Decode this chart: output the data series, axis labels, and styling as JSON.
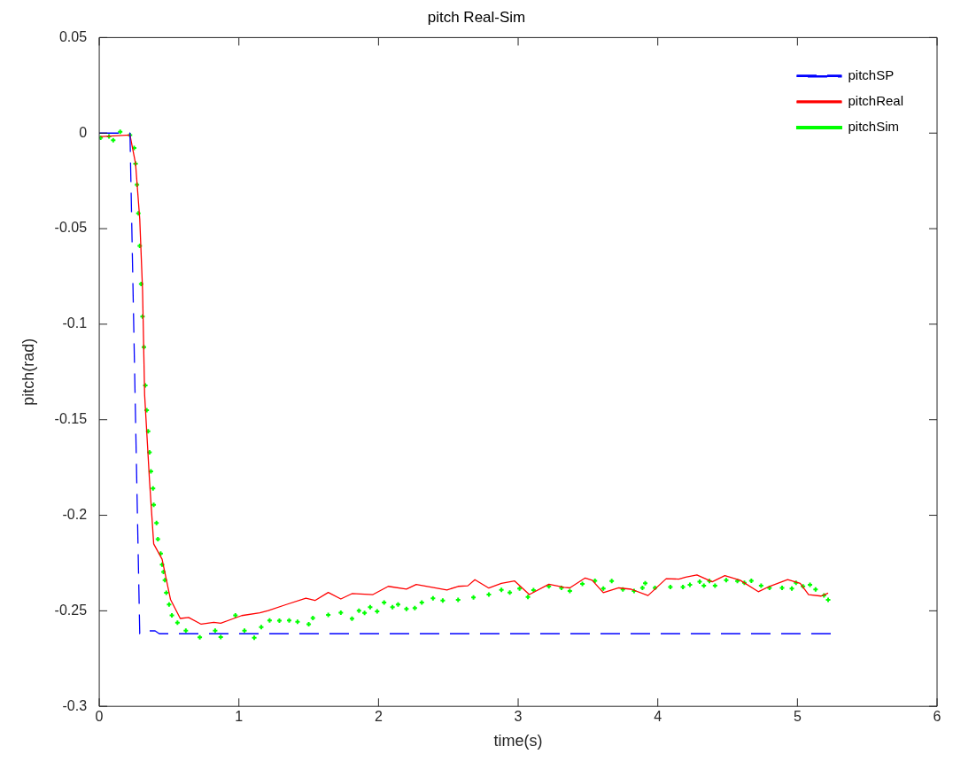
{
  "chart_data": {
    "type": "line",
    "title": "pitch Real-Sim",
    "xlabel": "time(s)",
    "ylabel": "pitch(rad)",
    "xlim": [
      0,
      6
    ],
    "ylim": [
      -0.3,
      0.05
    ],
    "xticks": [
      0,
      1,
      2,
      3,
      4,
      5,
      6
    ],
    "yticks": [
      -0.3,
      -0.25,
      -0.2,
      -0.15,
      -0.1,
      -0.05,
      0,
      0.05
    ],
    "legend": "top right",
    "series": [
      {
        "name": "pitchSP",
        "color": "#0000ff",
        "type": "line",
        "line_style": "dashed",
        "marker": "none",
        "x": [
          0,
          0.22,
          0.29,
          0.33,
          0.36,
          0.4,
          0.43,
          5.24
        ],
        "values": [
          0,
          0,
          -0.262,
          -0.262,
          -0.2605,
          -0.2605,
          -0.262,
          -0.262
        ]
      },
      {
        "name": "pitchReal",
        "color": "#ff0000",
        "type": "line",
        "line_style": "solid",
        "marker": "none",
        "x": [
          0.01,
          0.22,
          0.26,
          0.29,
          0.31,
          0.325,
          0.36,
          0.39,
          0.45,
          0.51,
          0.58,
          0.64,
          0.73,
          0.82,
          0.87,
          1.02,
          1.15,
          1.21,
          1.34,
          1.48,
          1.545,
          1.64,
          1.73,
          1.81,
          1.96,
          2.07,
          2.2,
          2.27,
          2.49,
          2.57,
          2.64,
          2.69,
          2.79,
          2.88,
          2.975,
          3.08,
          3.22,
          3.33,
          3.37,
          3.48,
          3.53,
          3.61,
          3.72,
          3.81,
          3.93,
          4.06,
          4.15,
          4.2,
          4.28,
          4.39,
          4.48,
          4.59,
          4.72,
          4.8,
          4.93,
          5.02,
          5.08,
          5.17,
          5.22
        ],
        "values": [
          -0.0018,
          -0.001,
          -0.016,
          -0.045,
          -0.082,
          -0.137,
          -0.182,
          -0.215,
          -0.223,
          -0.244,
          -0.254,
          -0.2535,
          -0.257,
          -0.256,
          -0.2565,
          -0.2525,
          -0.251,
          -0.2499,
          -0.2467,
          -0.2434,
          -0.2446,
          -0.2404,
          -0.2438,
          -0.241,
          -0.2415,
          -0.2372,
          -0.2386,
          -0.2362,
          -0.2391,
          -0.2372,
          -0.2369,
          -0.2337,
          -0.2381,
          -0.2356,
          -0.2344,
          -0.2415,
          -0.2361,
          -0.2377,
          -0.238,
          -0.2328,
          -0.234,
          -0.2405,
          -0.238,
          -0.2387,
          -0.242,
          -0.2332,
          -0.2334,
          -0.2324,
          -0.2312,
          -0.2348,
          -0.2316,
          -0.234,
          -0.24,
          -0.2372,
          -0.2337,
          -0.2356,
          -0.2415,
          -0.2423,
          -0.2407
        ]
      },
      {
        "name": "pitchSim",
        "color": "#00ff00",
        "type": "scatter",
        "marker": "cross",
        "x": [
          0.01,
          0.07,
          0.1,
          0.15,
          0.22,
          0.25,
          0.26,
          0.27,
          0.28,
          0.29,
          0.3,
          0.31,
          0.32,
          0.33,
          0.34,
          0.35,
          0.36,
          0.37,
          0.385,
          0.39,
          0.41,
          0.42,
          0.44,
          0.45,
          0.46,
          0.47,
          0.48,
          0.5,
          0.52,
          0.56,
          0.62,
          0.72,
          0.83,
          0.87,
          0.975,
          1.04,
          1.11,
          1.16,
          1.22,
          1.29,
          1.36,
          1.42,
          1.5,
          1.53,
          1.64,
          1.73,
          1.81,
          1.86,
          1.9,
          1.94,
          1.99,
          2.04,
          2.1,
          2.14,
          2.2,
          2.26,
          2.31,
          2.39,
          2.46,
          2.57,
          2.68,
          2.79,
          2.88,
          2.94,
          3.01,
          3.07,
          3.11,
          3.22,
          3.31,
          3.37,
          3.46,
          3.55,
          3.61,
          3.67,
          3.75,
          3.83,
          3.89,
          3.91,
          3.98,
          4.09,
          4.18,
          4.23,
          4.3,
          4.33,
          4.37,
          4.41,
          4.49,
          4.57,
          4.62,
          4.67,
          4.74,
          4.8,
          4.89,
          4.96,
          4.99,
          5.04,
          5.09,
          5.13,
          5.19,
          5.22
        ],
        "values": [
          -0.0024,
          -0.0018,
          -0.0037,
          0.0007,
          -0.001,
          -0.0078,
          -0.016,
          -0.027,
          -0.042,
          -0.059,
          -0.079,
          -0.096,
          -0.112,
          -0.132,
          -0.145,
          -0.156,
          -0.167,
          -0.177,
          -0.186,
          -0.1945,
          -0.204,
          -0.2125,
          -0.22,
          -0.2258,
          -0.2296,
          -0.234,
          -0.2405,
          -0.2467,
          -0.2524,
          -0.2562,
          -0.2604,
          -0.2638,
          -0.2604,
          -0.2637,
          -0.2524,
          -0.2604,
          -0.2641,
          -0.2585,
          -0.2551,
          -0.2552,
          -0.2551,
          -0.2557,
          -0.257,
          -0.2538,
          -0.2522,
          -0.251,
          -0.2541,
          -0.2499,
          -0.2511,
          -0.2481,
          -0.2503,
          -0.2457,
          -0.2481,
          -0.2467,
          -0.249,
          -0.2486,
          -0.2457,
          -0.2435,
          -0.2446,
          -0.2443,
          -0.243,
          -0.2415,
          -0.2391,
          -0.2404,
          -0.2383,
          -0.2427,
          -0.2392,
          -0.2372,
          -0.238,
          -0.2396,
          -0.2359,
          -0.2343,
          -0.2383,
          -0.2344,
          -0.2388,
          -0.2396,
          -0.238,
          -0.2356,
          -0.238,
          -0.2375,
          -0.2375,
          -0.2364,
          -0.2348,
          -0.2369,
          -0.2344,
          -0.2369,
          -0.234,
          -0.2344,
          -0.2353,
          -0.2343,
          -0.2369,
          -0.238,
          -0.238,
          -0.2383,
          -0.2353,
          -0.2372,
          -0.2364,
          -0.2388,
          -0.2419,
          -0.2443
        ]
      }
    ]
  }
}
